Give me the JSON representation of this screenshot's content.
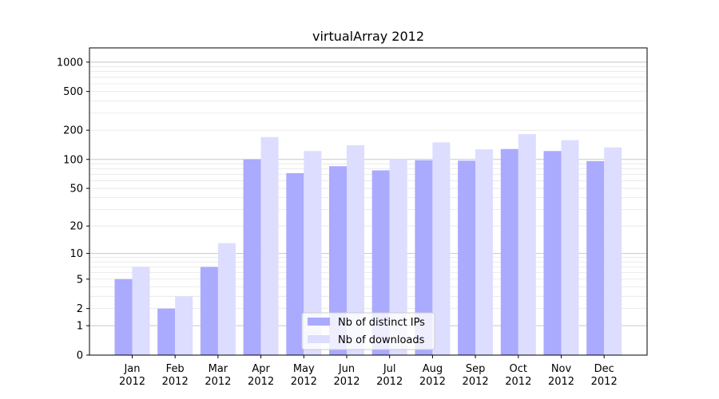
{
  "chart_data": {
    "type": "bar",
    "title": "virtualArray 2012",
    "xlabel": "",
    "ylabel": "",
    "yscale": "log",
    "categories": [
      [
        "Jan",
        "2012"
      ],
      [
        "Feb",
        "2012"
      ],
      [
        "Mar",
        "2012"
      ],
      [
        "Apr",
        "2012"
      ],
      [
        "May",
        "2012"
      ],
      [
        "Jun",
        "2012"
      ],
      [
        "Jul",
        "2012"
      ],
      [
        "Aug",
        "2012"
      ],
      [
        "Sep",
        "2012"
      ],
      [
        "Oct",
        "2012"
      ],
      [
        "Nov",
        "2012"
      ],
      [
        "Dec",
        "2012"
      ]
    ],
    "yticks": [
      "0",
      "1",
      "2",
      "5",
      "10",
      "20",
      "50",
      "100",
      "200",
      "500",
      "1000"
    ],
    "series": [
      {
        "name": "Nb of distinct IPs",
        "color": "#aaaaff",
        "values": [
          5,
          2,
          7,
          100,
          72,
          85,
          77,
          98,
          97,
          128,
          122,
          96
        ]
      },
      {
        "name": "Nb of downloads",
        "color": "#ddddff",
        "values": [
          7,
          3,
          13,
          170,
          122,
          140,
          100,
          150,
          127,
          182,
          158,
          133
        ]
      }
    ],
    "grid": "horizontal",
    "legend": "lower-center"
  }
}
